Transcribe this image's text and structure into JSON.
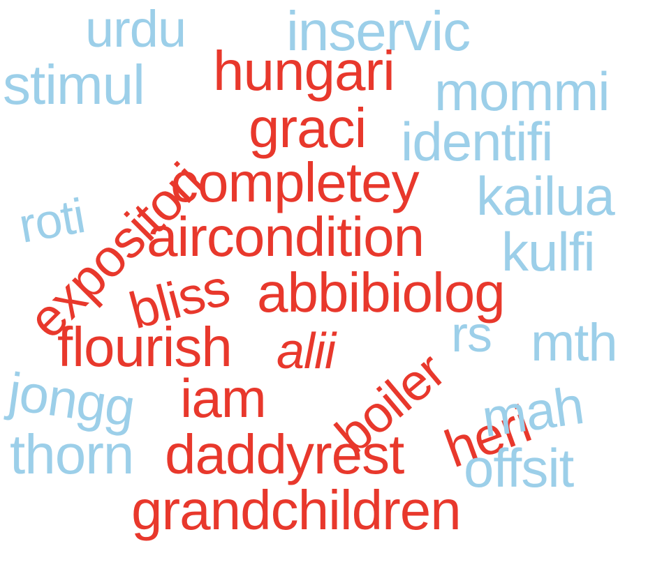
{
  "colors": {
    "red": "#e8382c",
    "blue": "#9ccfe9",
    "background": "#ffffff"
  },
  "words": {
    "urdu": "urdu",
    "inservic": "inservic",
    "stimul": "stimul",
    "hungari": "hungari",
    "mommi": "mommi",
    "expositori": "expositori",
    "graci": "graci",
    "identifi": "identifi",
    "roti": "roti",
    "completey": "completey",
    "kailua": "kailua",
    "aircondition": "aircondition",
    "kulfi": "kulfi",
    "bliss": "bliss",
    "abbibiolog": "abbibiolog",
    "rs": "rs",
    "mth": "mth",
    "flourish": "flourish",
    "alii": "alii",
    "boiler": "boiler",
    "heri": "heri",
    "jongg": "jongg",
    "iam": "iam",
    "mah": "mah",
    "thorn": "thorn",
    "daddyrest": "daddyrest",
    "offsit": "offsit",
    "grandchildren": "grandchildren"
  }
}
